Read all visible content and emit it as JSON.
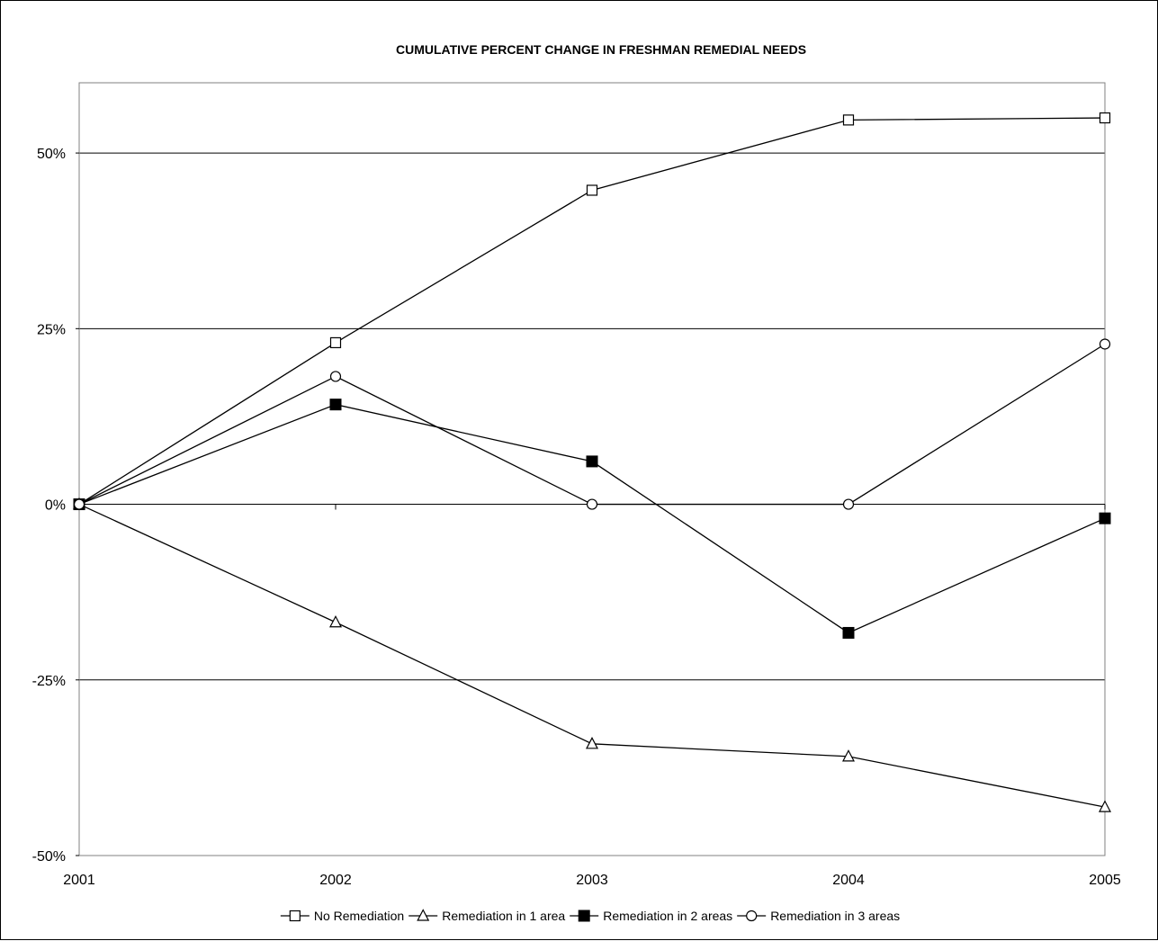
{
  "chart_data": {
    "type": "line",
    "title": "CUMULATIVE PERCENT CHANGE IN FRESHMAN REMEDIAL NEEDS",
    "xlabel": "",
    "ylabel": "",
    "x": [
      "2001",
      "2002",
      "2003",
      "2004",
      "2005"
    ],
    "yticks": [
      -50,
      -25,
      0,
      25,
      50
    ],
    "ytick_labels": [
      "-50%",
      "-25%",
      "0%",
      "25%",
      "50%"
    ],
    "ylim": [
      -50,
      60
    ],
    "grid": true,
    "legend_position": "bottom",
    "series": [
      {
        "name": "No Remediation",
        "marker": "open-square",
        "color": "#000000",
        "values": [
          0,
          23,
          44.7,
          54.7,
          55
        ]
      },
      {
        "name": "Remediation in 1 area",
        "marker": "open-triangle",
        "color": "#000000",
        "values": [
          0,
          -16.8,
          -34.1,
          -35.9,
          -43.1
        ]
      },
      {
        "name": "Remediation in 2 areas",
        "marker": "filled-square",
        "color": "#000000",
        "values": [
          0,
          14.2,
          6.1,
          -18.3,
          -2
        ]
      },
      {
        "name": "Remediation in 3 areas",
        "marker": "open-circle",
        "color": "#000000",
        "values": [
          0,
          18.2,
          0,
          0,
          22.8
        ]
      }
    ]
  }
}
